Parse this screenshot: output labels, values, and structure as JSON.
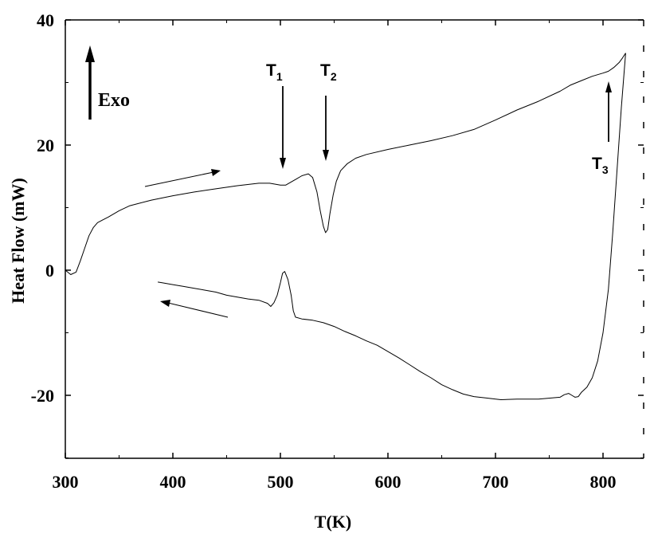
{
  "chart_data": {
    "type": "line",
    "title": "",
    "xlabel": "T(K)",
    "ylabel": "Heat Flow (mW)",
    "xlim": [
      300,
      845
    ],
    "ylim": [
      -30,
      40
    ],
    "x_ticks": [
      300,
      400,
      500,
      600,
      700,
      800
    ],
    "y_ticks": [
      -20,
      0,
      20,
      40
    ],
    "grid": false,
    "legend": "none",
    "series": [
      {
        "direction": "heating",
        "points": [
          [
            300,
            0
          ],
          [
            305,
            -0.7
          ],
          [
            310,
            -0.3
          ],
          [
            314,
            1.5
          ],
          [
            318,
            3.5
          ],
          [
            322,
            5.5
          ],
          [
            326,
            6.8
          ],
          [
            330,
            7.6
          ],
          [
            340,
            8.5
          ],
          [
            350,
            9.5
          ],
          [
            360,
            10.3
          ],
          [
            380,
            11.2
          ],
          [
            400,
            11.9
          ],
          [
            420,
            12.5
          ],
          [
            440,
            13.0
          ],
          [
            460,
            13.5
          ],
          [
            480,
            13.9
          ],
          [
            490,
            13.9
          ],
          [
            500,
            13.6
          ],
          [
            505,
            13.6
          ],
          [
            510,
            14.1
          ],
          [
            515,
            14.6
          ],
          [
            520,
            15.1
          ],
          [
            526,
            15.4
          ],
          [
            530,
            14.8
          ],
          [
            534,
            12.5
          ],
          [
            537,
            9.5
          ],
          [
            540,
            7.0
          ],
          [
            542,
            6.0
          ],
          [
            544,
            6.5
          ],
          [
            546,
            9.0
          ],
          [
            549,
            12.0
          ],
          [
            552,
            14.2
          ],
          [
            556,
            15.9
          ],
          [
            562,
            17.0
          ],
          [
            570,
            17.9
          ],
          [
            580,
            18.5
          ],
          [
            600,
            19.3
          ],
          [
            620,
            20.0
          ],
          [
            640,
            20.7
          ],
          [
            660,
            21.5
          ],
          [
            680,
            22.5
          ],
          [
            700,
            24.0
          ],
          [
            720,
            25.6
          ],
          [
            740,
            27.0
          ],
          [
            760,
            28.6
          ],
          [
            770,
            29.6
          ],
          [
            780,
            30.3
          ],
          [
            790,
            31.0
          ],
          [
            800,
            31.5
          ],
          [
            805,
            31.8
          ],
          [
            810,
            32.4
          ],
          [
            815,
            33.2
          ],
          [
            818,
            33.9
          ],
          [
            821,
            34.7
          ]
        ]
      },
      {
        "direction": "cooling",
        "points": [
          [
            821,
            34.7
          ],
          [
            817,
            26.0
          ],
          [
            813,
            16.0
          ],
          [
            809,
            6.0
          ],
          [
            805,
            -3.0
          ],
          [
            800,
            -10.0
          ],
          [
            795,
            -14.5
          ],
          [
            790,
            -17.2
          ],
          [
            785,
            -18.7
          ],
          [
            780,
            -19.5
          ],
          [
            777,
            -20.2
          ],
          [
            774,
            -20.3
          ],
          [
            771,
            -20.0
          ],
          [
            768,
            -19.7
          ],
          [
            764,
            -19.9
          ],
          [
            760,
            -20.3
          ],
          [
            740,
            -20.6
          ],
          [
            720,
            -20.6
          ],
          [
            705,
            -20.7
          ],
          [
            690,
            -20.4
          ],
          [
            680,
            -20.2
          ],
          [
            670,
            -19.8
          ],
          [
            660,
            -19.1
          ],
          [
            650,
            -18.3
          ],
          [
            640,
            -17.2
          ],
          [
            630,
            -16.2
          ],
          [
            620,
            -15.1
          ],
          [
            610,
            -14.0
          ],
          [
            600,
            -13.0
          ],
          [
            590,
            -12.0
          ],
          [
            580,
            -11.3
          ],
          [
            570,
            -10.5
          ],
          [
            560,
            -9.8
          ],
          [
            550,
            -9.0
          ],
          [
            540,
            -8.4
          ],
          [
            530,
            -8.0
          ],
          [
            520,
            -7.8
          ],
          [
            514,
            -7.5
          ],
          [
            512,
            -6.5
          ],
          [
            510,
            -4.0
          ],
          [
            507,
            -1.5
          ],
          [
            504,
            -0.2
          ],
          [
            502,
            -0.5
          ],
          [
            500,
            -2.0
          ],
          [
            497,
            -4.0
          ],
          [
            494,
            -5.2
          ],
          [
            491,
            -5.8
          ],
          [
            488,
            -5.3
          ],
          [
            480,
            -4.8
          ],
          [
            470,
            -4.6
          ],
          [
            460,
            -4.3
          ],
          [
            450,
            -4.0
          ],
          [
            440,
            -3.5
          ],
          [
            430,
            -3.2
          ],
          [
            420,
            -2.9
          ],
          [
            410,
            -2.6
          ],
          [
            400,
            -2.3
          ],
          [
            390,
            -2.0
          ],
          [
            386,
            -1.9
          ]
        ]
      }
    ],
    "annotations": {
      "exo_label": "Exo",
      "t1": {
        "main": "T",
        "sub": "1",
        "x": 502
      },
      "t2": {
        "main": "T",
        "sub": "2",
        "x": 542
      },
      "t3": {
        "main": "T",
        "sub": "3",
        "x": 805
      }
    }
  }
}
